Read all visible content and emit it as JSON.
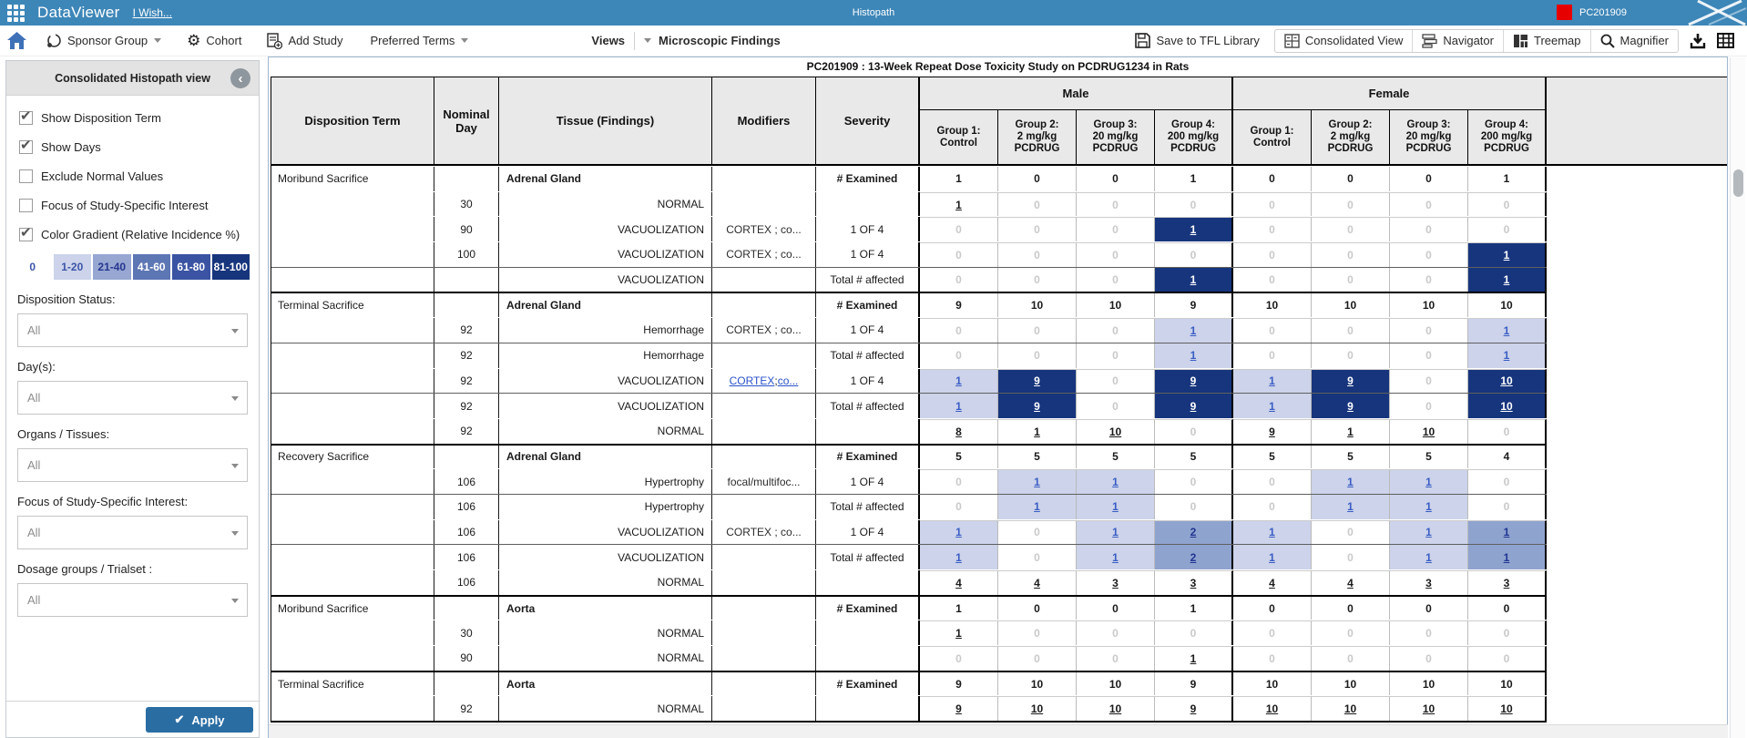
{
  "topbar": {
    "app": "DataViewer",
    "wish": "I Wish...",
    "center": "Histopath",
    "study": "PC201909"
  },
  "toolbar": {
    "sponsor": "Sponsor Group",
    "cohort": "Cohort",
    "add_study": "Add Study",
    "preferred": "Preferred Terms",
    "views": "Views",
    "view_name": "Microscopic Findings",
    "save": "Save to TFL Library",
    "consolidated": "Consolidated View",
    "navigator": "Navigator",
    "treemap": "Treemap",
    "magnifier": "Magnifier"
  },
  "sidebar": {
    "title": "Consolidated Histopath view",
    "checkboxes": [
      {
        "label": "Show Disposition Term",
        "checked": true
      },
      {
        "label": "Show Days",
        "checked": true
      },
      {
        "label": "Exclude Normal Values",
        "checked": false
      },
      {
        "label": "Focus of Study-Specific Interest",
        "checked": false
      },
      {
        "label": "Color Gradient (Relative Incidence %)",
        "checked": true
      }
    ],
    "legend": [
      {
        "label": "0",
        "bg": "#ffffff",
        "fg": "#3c55a8"
      },
      {
        "label": "1-20",
        "bg": "#ccd3ea",
        "fg": "#3c55a8"
      },
      {
        "label": "21-40",
        "bg": "#97a7d2",
        "fg": "#26368f"
      },
      {
        "label": "41-60",
        "bg": "#5d76b4",
        "fg": "#ffffff"
      },
      {
        "label": "61-80",
        "bg": "#3a53a2",
        "fg": "#ffffff"
      },
      {
        "label": "81-100",
        "bg": "#17357d",
        "fg": "#ffffff"
      }
    ],
    "filters": [
      {
        "label": "Disposition Status:",
        "value": "All"
      },
      {
        "label": "Day(s):",
        "value": "All"
      },
      {
        "label": "Organs / Tissues:",
        "value": "All"
      },
      {
        "label": "Focus of Study-Specific Interest:",
        "value": "All"
      },
      {
        "label": "Dosage groups / Trialset :",
        "value": "All"
      }
    ],
    "apply": "Apply"
  },
  "table": {
    "title": "PC201909 : 13-Week Repeat Dose Toxicity Study on PCDRUG1234 in Rats",
    "columns": [
      "Disposition Term",
      "Nominal Day",
      "Tissue (Findings)",
      "Modifiers",
      "Severity"
    ],
    "sexes": [
      "Male",
      "Female"
    ],
    "groups": [
      "Group 1:\nControl",
      "Group 2:\n2 mg/kg\nPCDRUG",
      "Group 3:\n20 mg/kg\nPCDRUG",
      "Group 4:\n200 mg/kg\nPCDRUG"
    ],
    "rows": [
      {
        "disp": "Moribund Sacrifice",
        "day": "",
        "organ": "Adrenal Gland",
        "finding": "",
        "mod": "",
        "modLink": false,
        "sev": "# Examined",
        "sevBold": true,
        "sep": "first",
        "cells": [
          [
            "1",
            "p"
          ],
          [
            "0",
            "p"
          ],
          [
            "0",
            "p"
          ],
          [
            "1",
            "p"
          ],
          [
            "0",
            "p"
          ],
          [
            "0",
            "p"
          ],
          [
            "0",
            "p"
          ],
          [
            "1",
            "p"
          ]
        ]
      },
      {
        "disp": "",
        "day": "30",
        "organ": "",
        "finding": "NORMAL",
        "mod": "",
        "modLink": false,
        "sev": "",
        "sevBold": false,
        "sep": "plain",
        "cells": [
          [
            "1",
            "u"
          ],
          [
            "0",
            "z"
          ],
          [
            "0",
            "z"
          ],
          [
            "0",
            "z"
          ],
          [
            "0",
            "z"
          ],
          [
            "0",
            "z"
          ],
          [
            "0",
            "z"
          ],
          [
            "0",
            "z"
          ]
        ]
      },
      {
        "disp": "",
        "day": "90",
        "organ": "",
        "finding": "VACUOLIZATION",
        "mod": "CORTEX ; co...",
        "modLink": false,
        "sev": "1 OF 4",
        "sevBold": false,
        "sep": "plain",
        "cells": [
          [
            "0",
            "z"
          ],
          [
            "0",
            "z"
          ],
          [
            "0",
            "z"
          ],
          [
            "1",
            "D"
          ],
          [
            "0",
            "z"
          ],
          [
            "0",
            "z"
          ],
          [
            "0",
            "z"
          ],
          [
            "0",
            "z"
          ]
        ]
      },
      {
        "disp": "",
        "day": "100",
        "organ": "",
        "finding": "VACUOLIZATION",
        "mod": "CORTEX ; co...",
        "modLink": false,
        "sev": "1 OF 4",
        "sevBold": false,
        "sep": "plain",
        "cells": [
          [
            "0",
            "z"
          ],
          [
            "0",
            "z"
          ],
          [
            "0",
            "z"
          ],
          [
            "0",
            "z"
          ],
          [
            "0",
            "z"
          ],
          [
            "0",
            "z"
          ],
          [
            "0",
            "z"
          ],
          [
            "1",
            "D"
          ]
        ]
      },
      {
        "disp": "",
        "day": "",
        "organ": "",
        "finding": "VACUOLIZATION",
        "mod": "",
        "modLink": false,
        "sev": "Total # affected",
        "sevBold": false,
        "sep": "total",
        "cells": [
          [
            "0",
            "z"
          ],
          [
            "0",
            "z"
          ],
          [
            "0",
            "z"
          ],
          [
            "1",
            "D"
          ],
          [
            "0",
            "z"
          ],
          [
            "0",
            "z"
          ],
          [
            "0",
            "z"
          ],
          [
            "1",
            "D"
          ]
        ]
      },
      {
        "disp": "Terminal Sacrifice",
        "day": "",
        "organ": "Adrenal Gland",
        "finding": "",
        "mod": "",
        "modLink": false,
        "sev": "# Examined",
        "sevBold": true,
        "sep": "block",
        "cells": [
          [
            "9",
            "p"
          ],
          [
            "10",
            "p"
          ],
          [
            "10",
            "p"
          ],
          [
            "9",
            "p"
          ],
          [
            "10",
            "p"
          ],
          [
            "10",
            "p"
          ],
          [
            "10",
            "p"
          ],
          [
            "10",
            "p"
          ]
        ]
      },
      {
        "disp": "",
        "day": "92",
        "organ": "",
        "finding": "Hemorrhage",
        "mod": "CORTEX ; co...",
        "modLink": false,
        "sev": "1 OF 4",
        "sevBold": false,
        "sep": "plain",
        "cells": [
          [
            "0",
            "z"
          ],
          [
            "0",
            "z"
          ],
          [
            "0",
            "z"
          ],
          [
            "1",
            "L"
          ],
          [
            "0",
            "z"
          ],
          [
            "0",
            "z"
          ],
          [
            "0",
            "z"
          ],
          [
            "1",
            "L"
          ]
        ]
      },
      {
        "disp": "",
        "day": "92",
        "organ": "",
        "finding": "Hemorrhage",
        "mod": "",
        "modLink": false,
        "sev": "Total # affected",
        "sevBold": false,
        "sep": "total",
        "cells": [
          [
            "0",
            "z"
          ],
          [
            "0",
            "z"
          ],
          [
            "0",
            "z"
          ],
          [
            "1",
            "L"
          ],
          [
            "0",
            "z"
          ],
          [
            "0",
            "z"
          ],
          [
            "0",
            "z"
          ],
          [
            "1",
            "L"
          ]
        ]
      },
      {
        "disp": "",
        "day": "92",
        "organ": "",
        "finding": "VACUOLIZATION",
        "mod": "CORTEX ; co...",
        "modLink": true,
        "sev": "1 OF 4",
        "sevBold": false,
        "sep": "plain",
        "cells": [
          [
            "1",
            "L"
          ],
          [
            "9",
            "D"
          ],
          [
            "0",
            "z"
          ],
          [
            "9",
            "D"
          ],
          [
            "1",
            "L"
          ],
          [
            "9",
            "D"
          ],
          [
            "0",
            "z"
          ],
          [
            "10",
            "D"
          ]
        ]
      },
      {
        "disp": "",
        "day": "92",
        "organ": "",
        "finding": "VACUOLIZATION",
        "mod": "",
        "modLink": false,
        "sev": "Total # affected",
        "sevBold": false,
        "sep": "total",
        "cells": [
          [
            "1",
            "L"
          ],
          [
            "9",
            "D"
          ],
          [
            "0",
            "z"
          ],
          [
            "9",
            "D"
          ],
          [
            "1",
            "L"
          ],
          [
            "9",
            "D"
          ],
          [
            "0",
            "z"
          ],
          [
            "10",
            "D"
          ]
        ]
      },
      {
        "disp": "",
        "day": "92",
        "organ": "",
        "finding": "NORMAL",
        "mod": "",
        "modLink": false,
        "sev": "",
        "sevBold": false,
        "sep": "plain",
        "cells": [
          [
            "8",
            "u"
          ],
          [
            "1",
            "u"
          ],
          [
            "10",
            "u"
          ],
          [
            "0",
            "z"
          ],
          [
            "9",
            "u"
          ],
          [
            "1",
            "u"
          ],
          [
            "10",
            "u"
          ],
          [
            "0",
            "z"
          ]
        ]
      },
      {
        "disp": "Recovery Sacrifice",
        "day": "",
        "organ": "Adrenal Gland",
        "finding": "",
        "mod": "",
        "modLink": false,
        "sev": "# Examined",
        "sevBold": true,
        "sep": "block",
        "cells": [
          [
            "5",
            "p"
          ],
          [
            "5",
            "p"
          ],
          [
            "5",
            "p"
          ],
          [
            "5",
            "p"
          ],
          [
            "5",
            "p"
          ],
          [
            "5",
            "p"
          ],
          [
            "5",
            "p"
          ],
          [
            "4",
            "p"
          ]
        ]
      },
      {
        "disp": "",
        "day": "106",
        "organ": "",
        "finding": "Hypertrophy",
        "mod": "focal/multifoc...",
        "modLink": false,
        "sev": "1 OF 4",
        "sevBold": false,
        "sep": "plain",
        "cells": [
          [
            "0",
            "z"
          ],
          [
            "1",
            "L"
          ],
          [
            "1",
            "L"
          ],
          [
            "0",
            "z"
          ],
          [
            "0",
            "z"
          ],
          [
            "1",
            "L"
          ],
          [
            "1",
            "L"
          ],
          [
            "0",
            "z"
          ]
        ]
      },
      {
        "disp": "",
        "day": "106",
        "organ": "",
        "finding": "Hypertrophy",
        "mod": "",
        "modLink": false,
        "sev": "Total # affected",
        "sevBold": false,
        "sep": "total",
        "cells": [
          [
            "0",
            "z"
          ],
          [
            "1",
            "L"
          ],
          [
            "1",
            "L"
          ],
          [
            "0",
            "z"
          ],
          [
            "0",
            "z"
          ],
          [
            "1",
            "L"
          ],
          [
            "1",
            "L"
          ],
          [
            "0",
            "z"
          ]
        ]
      },
      {
        "disp": "",
        "day": "106",
        "organ": "",
        "finding": "VACUOLIZATION",
        "mod": "CORTEX ; co...",
        "modLink": false,
        "sev": "1 OF 4",
        "sevBold": false,
        "sep": "plain",
        "cells": [
          [
            "1",
            "L"
          ],
          [
            "0",
            "z"
          ],
          [
            "1",
            "L"
          ],
          [
            "2",
            "M"
          ],
          [
            "1",
            "L"
          ],
          [
            "0",
            "z"
          ],
          [
            "1",
            "L"
          ],
          [
            "1",
            "M"
          ]
        ]
      },
      {
        "disp": "",
        "day": "106",
        "organ": "",
        "finding": "VACUOLIZATION",
        "mod": "",
        "modLink": false,
        "sev": "Total # affected",
        "sevBold": false,
        "sep": "total",
        "cells": [
          [
            "1",
            "L"
          ],
          [
            "0",
            "z"
          ],
          [
            "1",
            "L"
          ],
          [
            "2",
            "M"
          ],
          [
            "1",
            "L"
          ],
          [
            "0",
            "z"
          ],
          [
            "1",
            "L"
          ],
          [
            "1",
            "M"
          ]
        ]
      },
      {
        "disp": "",
        "day": "106",
        "organ": "",
        "finding": "NORMAL",
        "mod": "",
        "modLink": false,
        "sev": "",
        "sevBold": false,
        "sep": "plain",
        "cells": [
          [
            "4",
            "u"
          ],
          [
            "4",
            "u"
          ],
          [
            "3",
            "u"
          ],
          [
            "3",
            "u"
          ],
          [
            "4",
            "u"
          ],
          [
            "4",
            "u"
          ],
          [
            "3",
            "u"
          ],
          [
            "3",
            "u"
          ]
        ]
      },
      {
        "disp": "Moribund Sacrifice",
        "day": "",
        "organ": "Aorta",
        "finding": "",
        "mod": "",
        "modLink": false,
        "sev": "# Examined",
        "sevBold": true,
        "sep": "block",
        "cells": [
          [
            "1",
            "p"
          ],
          [
            "0",
            "p"
          ],
          [
            "0",
            "p"
          ],
          [
            "1",
            "p"
          ],
          [
            "0",
            "p"
          ],
          [
            "0",
            "p"
          ],
          [
            "0",
            "p"
          ],
          [
            "0",
            "p"
          ]
        ]
      },
      {
        "disp": "",
        "day": "30",
        "organ": "",
        "finding": "NORMAL",
        "mod": "",
        "modLink": false,
        "sev": "",
        "sevBold": false,
        "sep": "plain",
        "cells": [
          [
            "1",
            "u"
          ],
          [
            "0",
            "z"
          ],
          [
            "0",
            "z"
          ],
          [
            "0",
            "z"
          ],
          [
            "0",
            "z"
          ],
          [
            "0",
            "z"
          ],
          [
            "0",
            "z"
          ],
          [
            "0",
            "z"
          ]
        ]
      },
      {
        "disp": "",
        "day": "90",
        "organ": "",
        "finding": "NORMAL",
        "mod": "",
        "modLink": false,
        "sev": "",
        "sevBold": false,
        "sep": "plain",
        "cells": [
          [
            "0",
            "z"
          ],
          [
            "0",
            "z"
          ],
          [
            "0",
            "z"
          ],
          [
            "1",
            "u"
          ],
          [
            "0",
            "z"
          ],
          [
            "0",
            "z"
          ],
          [
            "0",
            "z"
          ],
          [
            "0",
            "z"
          ]
        ]
      },
      {
        "disp": "Terminal Sacrifice",
        "day": "",
        "organ": "Aorta",
        "finding": "",
        "mod": "",
        "modLink": false,
        "sev": "# Examined",
        "sevBold": true,
        "sep": "block",
        "cells": [
          [
            "9",
            "p"
          ],
          [
            "10",
            "p"
          ],
          [
            "10",
            "p"
          ],
          [
            "9",
            "p"
          ],
          [
            "10",
            "p"
          ],
          [
            "10",
            "p"
          ],
          [
            "10",
            "p"
          ],
          [
            "10",
            "p"
          ]
        ]
      },
      {
        "disp": "",
        "day": "92",
        "organ": "",
        "finding": "NORMAL",
        "mod": "",
        "modLink": false,
        "sev": "",
        "sevBold": false,
        "sep": "plain",
        "cells": [
          [
            "9",
            "u"
          ],
          [
            "10",
            "u"
          ],
          [
            "10",
            "u"
          ],
          [
            "9",
            "u"
          ],
          [
            "10",
            "u"
          ],
          [
            "10",
            "u"
          ],
          [
            "10",
            "u"
          ],
          [
            "10",
            "u"
          ]
        ]
      }
    ]
  }
}
